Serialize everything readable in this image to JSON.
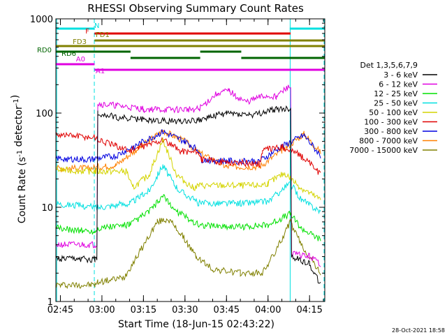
{
  "chart_data": {
    "type": "line",
    "title": "RHESSI Observing Summary Count Rates",
    "ylabel": "Count Rate (s⁻¹ detector⁻¹)",
    "xlabel": "Start Time (18-Jun-15 02:43:22)",
    "y_scale": "log",
    "ylim": [
      1,
      1000
    ],
    "xlim": [
      "02:43:22",
      "04:20:30"
    ],
    "y_ticks": [
      {
        "value": 1,
        "label": "1"
      },
      {
        "value": 10,
        "label": "10"
      },
      {
        "value": 100,
        "label": "100"
      },
      {
        "value": 1000,
        "label": "1000"
      }
    ],
    "x_ticks": [
      {
        "time": "02:45",
        "label": "02:45"
      },
      {
        "time": "03:00",
        "label": "03:00"
      },
      {
        "time": "03:15",
        "label": "03:15"
      },
      {
        "time": "03:30",
        "label": "03:30"
      },
      {
        "time": "03:45",
        "label": "03:45"
      },
      {
        "time": "04:00",
        "label": "04:00"
      },
      {
        "time": "04:15",
        "label": "04:15"
      }
    ],
    "legend_title": "Det 1,3,5,6,7,9",
    "legend_position": "right",
    "series": [
      {
        "name": "3 - 6 keV",
        "color": "#000000",
        "points": [
          [
            "02:43:30",
            2.8
          ],
          [
            "02:57:30",
            2.8
          ],
          [
            "02:58:30",
            100
          ],
          [
            "03:05",
            90
          ],
          [
            "03:15",
            85
          ],
          [
            "03:25",
            82
          ],
          [
            "03:35",
            85
          ],
          [
            "03:45",
            100
          ],
          [
            "03:55",
            95
          ],
          [
            "04:03",
            110
          ],
          [
            "04:07:30",
            110
          ],
          [
            "04:08:30",
            3
          ],
          [
            "04:15",
            2.5
          ],
          [
            "04:19",
            1.5
          ]
        ]
      },
      {
        "name": "6 - 12 keV",
        "color": "#e000e0",
        "points": [
          [
            "02:43:30",
            4
          ],
          [
            "02:57:30",
            4
          ],
          [
            "02:58:30",
            125
          ],
          [
            "03:05",
            120
          ],
          [
            "03:15",
            110
          ],
          [
            "03:25",
            108
          ],
          [
            "03:35",
            110
          ],
          [
            "03:42",
            165
          ],
          [
            "03:46",
            170
          ],
          [
            "03:52",
            130
          ],
          [
            "03:58",
            150
          ],
          [
            "04:03",
            150
          ],
          [
            "04:07",
            185
          ],
          [
            "04:08:30",
            3.2
          ],
          [
            "04:15",
            3
          ],
          [
            "04:19",
            2.5
          ]
        ]
      },
      {
        "name": "12 - 25 keV",
        "color": "#00e000",
        "points": [
          [
            "02:43:30",
            6
          ],
          [
            "02:57:30",
            5.5
          ],
          [
            "02:58:30",
            6
          ],
          [
            "03:10",
            6.5
          ],
          [
            "03:17",
            9
          ],
          [
            "03:22",
            13
          ],
          [
            "03:27",
            9
          ],
          [
            "03:35",
            6.5
          ],
          [
            "03:50",
            6.2
          ],
          [
            "04:00",
            6.5
          ],
          [
            "04:08",
            8.5
          ],
          [
            "04:12",
            6
          ],
          [
            "04:19",
            4.5
          ]
        ]
      },
      {
        "name": "25 - 50 keV",
        "color": "#00e0e0",
        "points": [
          [
            "02:43:30",
            11
          ],
          [
            "02:57:30",
            10
          ],
          [
            "02:58:30",
            10
          ],
          [
            "03:10",
            11
          ],
          [
            "03:17",
            15
          ],
          [
            "03:22",
            28
          ],
          [
            "03:27",
            16
          ],
          [
            "03:35",
            11
          ],
          [
            "03:50",
            11
          ],
          [
            "04:00",
            11.5
          ],
          [
            "04:08",
            18
          ],
          [
            "04:12",
            12
          ],
          [
            "04:19",
            9
          ]
        ]
      },
      {
        "name": "50 - 100 keV",
        "color": "#d4d400",
        "points": [
          [
            "02:43:30",
            25
          ],
          [
            "02:57:30",
            24
          ],
          [
            "03:09",
            24
          ],
          [
            "03:11",
            16
          ],
          [
            "03:17",
            22
          ],
          [
            "03:22",
            52
          ],
          [
            "03:27",
            22
          ],
          [
            "03:33",
            16
          ],
          [
            "03:35",
            17
          ],
          [
            "03:50",
            17
          ],
          [
            "03:57",
            17
          ],
          [
            "04:00",
            18
          ],
          [
            "04:06",
            23
          ],
          [
            "04:12",
            16
          ],
          [
            "04:19",
            12
          ]
        ]
      },
      {
        "name": "100 - 300 keV",
        "color": "#e00000",
        "points": [
          [
            "02:43:30",
            60
          ],
          [
            "02:57:30",
            55
          ],
          [
            "02:58:30",
            52
          ],
          [
            "03:05",
            45
          ],
          [
            "03:10",
            40
          ],
          [
            "03:22",
            52
          ],
          [
            "03:28",
            40
          ],
          [
            "03:35",
            38
          ],
          [
            "03:36",
            32
          ],
          [
            "03:45",
            30
          ],
          [
            "03:57",
            29
          ],
          [
            "03:58",
            40
          ],
          [
            "04:05",
            44
          ],
          [
            "04:10",
            38
          ],
          [
            "04:15",
            30
          ],
          [
            "04:19",
            22
          ]
        ]
      },
      {
        "name": "300 - 800 keV",
        "color": "#0000e0",
        "points": [
          [
            "02:43:30",
            33
          ],
          [
            "02:55",
            32
          ],
          [
            "03:05",
            35
          ],
          [
            "03:12",
            45
          ],
          [
            "03:22",
            63
          ],
          [
            "03:30",
            50
          ],
          [
            "03:35",
            40
          ],
          [
            "03:36",
            32
          ],
          [
            "03:45",
            31
          ],
          [
            "03:57",
            31
          ],
          [
            "04:05",
            44
          ],
          [
            "04:13",
            58
          ],
          [
            "04:19",
            35
          ]
        ]
      },
      {
        "name": "800 - 7000 keV",
        "color": "#ff8000",
        "points": [
          [
            "02:43:30",
            26
          ],
          [
            "02:55",
            26
          ],
          [
            "03:05",
            28
          ],
          [
            "03:12",
            40
          ],
          [
            "03:22",
            65
          ],
          [
            "03:30",
            50
          ],
          [
            "03:35",
            38
          ],
          [
            "03:45",
            27
          ],
          [
            "03:57",
            27
          ],
          [
            "04:05",
            40
          ],
          [
            "04:13",
            60
          ],
          [
            "04:19",
            38
          ]
        ]
      },
      {
        "name": "7000 - 15000 keV",
        "color": "#808000",
        "points": [
          [
            "02:43:30",
            1.5
          ],
          [
            "02:57:30",
            1.5
          ],
          [
            "02:58:30",
            1.6
          ],
          [
            "03:08",
            1.8
          ],
          [
            "03:14",
            3.5
          ],
          [
            "03:20",
            7
          ],
          [
            "03:24",
            7.5
          ],
          [
            "03:29",
            5
          ],
          [
            "03:34",
            3
          ],
          [
            "03:40",
            2.2
          ],
          [
            "03:50",
            2
          ],
          [
            "03:58",
            2
          ],
          [
            "04:03",
            3.5
          ],
          [
            "04:08",
            7
          ],
          [
            "04:12",
            4
          ],
          [
            "04:19",
            2
          ]
        ]
      }
    ],
    "status_flags": [
      {
        "label": "N",
        "color": "#00e0e0",
        "segments": [
          [
            "02:43:22",
            "02:57:10"
          ],
          [
            "04:07:50",
            "04:20:30"
          ]
        ]
      },
      {
        "label": "F",
        "color": "#e00000",
        "segments": [
          [
            "02:57:20",
            "04:08:10"
          ]
        ]
      },
      {
        "label": "FD1",
        "color": "#808000",
        "segments": [
          [
            "02:57:20",
            "04:20:30"
          ]
        ]
      },
      {
        "label": "FD3",
        "color": "#808000",
        "segments": [
          [
            "02:43:22",
            "04:20:30"
          ]
        ]
      },
      {
        "label": "RD0",
        "color": "#006400",
        "segments": [
          [
            "02:43:22",
            "03:10:20"
          ],
          [
            "03:35:30",
            "03:50:20"
          ]
        ]
      },
      {
        "label": "RD6",
        "color": "#006400",
        "segments": [
          [
            "03:10:20",
            "03:35:30"
          ],
          [
            "03:50:20",
            "04:20:30"
          ]
        ]
      },
      {
        "label": "A0",
        "color": "#e000e0",
        "segments": [
          [
            "02:43:22",
            "02:57:20"
          ]
        ]
      },
      {
        "label": "A1",
        "color": "#e000e0",
        "segments": [
          [
            "02:57:20",
            "04:20:30"
          ]
        ]
      }
    ],
    "vertical_markers": [
      {
        "time": "02:43:40",
        "color": "#00e0e0",
        "style": "solid"
      },
      {
        "time": "02:57:15",
        "color": "#00e0e0",
        "style": "dashed"
      },
      {
        "time": "04:08:00",
        "color": "#00e0e0",
        "style": "solid"
      },
      {
        "time": "04:20:15",
        "color": "#00e0e0",
        "style": "dashed"
      }
    ]
  },
  "timestamp": "28-Oct-2021 18:58"
}
